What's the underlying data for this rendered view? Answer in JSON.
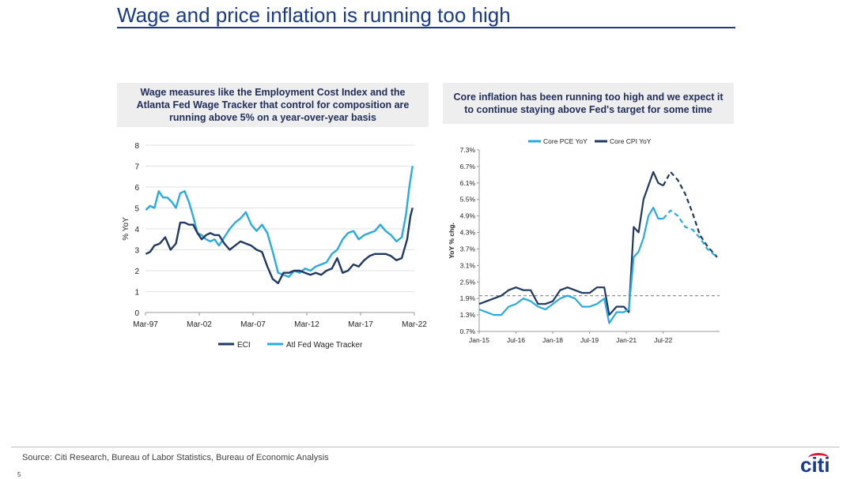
{
  "slide": {
    "title": "Wage and price inflation is running too high",
    "source": "Source: Citi Research, Bureau of Labor Statistics, Bureau of Economic Analysis",
    "page_number": "5",
    "logo_text": "citi",
    "colors": {
      "title": "#1a3a8c",
      "dark_series": "#1f3864",
      "light_series": "#29abe2",
      "logo_arc": "#e31837"
    }
  },
  "panels": {
    "left_heading": "Wage measures like the Employment Cost Index and the Atlanta Fed Wage Tracker that control for composition are running above 5% on a year-over-year basis",
    "right_heading": "Core inflation has been running too high and we expect it to continue staying above Fed's target for some time"
  },
  "chart_data": [
    {
      "type": "line",
      "ylabel": "% YoY",
      "ylim": [
        0,
        8
      ],
      "yticks": [
        0,
        1,
        2,
        3,
        4,
        5,
        6,
        7,
        8
      ],
      "xlim": [
        1997.17,
        2022.17
      ],
      "xtick_labels": [
        "Mar-97",
        "Mar-02",
        "Mar-07",
        "Mar-12",
        "Mar-17",
        "Mar-22"
      ],
      "xtick_positions": [
        1997.17,
        2002.17,
        2007.17,
        2012.17,
        2017.17,
        2022.17
      ],
      "legend_position": "bottom",
      "series": [
        {
          "name": "ECI",
          "color": "#1f3864",
          "x": [
            1997.2,
            1997.6,
            1998.0,
            1998.5,
            1999.0,
            1999.5,
            2000.0,
            2000.4,
            2000.8,
            2001.2,
            2001.6,
            2002.0,
            2002.4,
            2002.8,
            2003.2,
            2003.6,
            2004.0,
            2004.5,
            2005.0,
            2005.5,
            2006.0,
            2006.5,
            2007.0,
            2007.5,
            2008.0,
            2008.5,
            2009.0,
            2009.5,
            2010.0,
            2010.5,
            2011.0,
            2011.5,
            2012.0,
            2012.5,
            2013.0,
            2013.5,
            2014.0,
            2014.5,
            2015.0,
            2015.5,
            2016.0,
            2016.5,
            2017.0,
            2017.5,
            2018.0,
            2018.5,
            2019.0,
            2019.5,
            2020.0,
            2020.5,
            2021.0,
            2021.5,
            2021.8,
            2022.0
          ],
          "y": [
            2.8,
            2.9,
            3.2,
            3.3,
            3.6,
            3.0,
            3.3,
            4.3,
            4.3,
            4.2,
            4.2,
            3.8,
            3.5,
            3.7,
            3.8,
            3.7,
            3.7,
            3.3,
            3.0,
            3.2,
            3.4,
            3.3,
            3.2,
            3.0,
            2.9,
            2.2,
            1.6,
            1.4,
            1.9,
            1.9,
            2.0,
            2.0,
            1.9,
            1.8,
            1.9,
            1.8,
            2.0,
            2.1,
            2.6,
            1.9,
            2.0,
            2.3,
            2.2,
            2.5,
            2.7,
            2.8,
            2.8,
            2.8,
            2.7,
            2.5,
            2.6,
            3.5,
            4.6,
            5.0
          ]
        },
        {
          "name": "Atl Fed Wage Tracker",
          "color": "#29abe2",
          "x": [
            1997.2,
            1997.6,
            1998.0,
            1998.4,
            1998.8,
            1999.2,
            1999.6,
            2000.0,
            2000.4,
            2000.8,
            2001.2,
            2001.6,
            2002.0,
            2002.4,
            2002.8,
            2003.2,
            2003.6,
            2004.0,
            2004.5,
            2005.0,
            2005.5,
            2006.0,
            2006.5,
            2007.0,
            2007.5,
            2008.0,
            2008.5,
            2009.0,
            2009.5,
            2010.0,
            2010.5,
            2011.0,
            2011.5,
            2012.0,
            2012.5,
            2013.0,
            2013.5,
            2014.0,
            2014.5,
            2015.0,
            2015.5,
            2016.0,
            2016.5,
            2017.0,
            2017.5,
            2018.0,
            2018.5,
            2019.0,
            2019.5,
            2020.0,
            2020.5,
            2021.0,
            2021.4,
            2021.7,
            2022.0
          ],
          "y": [
            4.9,
            5.1,
            5.0,
            5.8,
            5.5,
            5.5,
            5.3,
            5.0,
            5.7,
            5.8,
            5.3,
            4.6,
            3.8,
            3.7,
            3.5,
            3.4,
            3.5,
            3.2,
            3.6,
            4.0,
            4.3,
            4.5,
            4.8,
            4.2,
            3.9,
            4.2,
            3.8,
            2.9,
            1.9,
            1.8,
            1.7,
            2.0,
            1.9,
            2.1,
            2.0,
            2.2,
            2.3,
            2.4,
            2.8,
            3.0,
            3.5,
            3.8,
            3.9,
            3.5,
            3.7,
            3.8,
            3.9,
            4.2,
            3.9,
            3.7,
            3.4,
            3.6,
            4.7,
            6.0,
            7.0
          ]
        }
      ]
    },
    {
      "type": "line",
      "ylabel": "YoY % chg.",
      "ylim": [
        0.7,
        7.3
      ],
      "ytick_labels": [
        "0.7%",
        "1.3%",
        "1.9%",
        "2.5%",
        "3.1%",
        "3.7%",
        "4.3%",
        "4.9%",
        "5.5%",
        "6.1%",
        "6.7%",
        "7.3%"
      ],
      "ytick_positions": [
        0.7,
        1.3,
        1.9,
        2.5,
        3.1,
        3.7,
        4.3,
        4.9,
        5.5,
        6.1,
        6.7,
        7.3
      ],
      "xlim": [
        2015.0,
        2024.8
      ],
      "xtick_labels": [
        "Jan-15",
        "Jul-16",
        "Jan-18",
        "Jul-19",
        "Jan-21",
        "Jul-22"
      ],
      "xtick_positions": [
        2015.0,
        2016.5,
        2018.0,
        2019.5,
        2021.0,
        2022.5
      ],
      "reference_line": 2.0,
      "legend_position": "top",
      "series": [
        {
          "name": "Core PCE YoY",
          "color": "#29abe2",
          "x": [
            2015.0,
            2015.3,
            2015.6,
            2015.9,
            2016.2,
            2016.5,
            2016.8,
            2017.1,
            2017.4,
            2017.7,
            2018.0,
            2018.3,
            2018.6,
            2018.9,
            2019.2,
            2019.5,
            2019.8,
            2020.1,
            2020.3,
            2020.6,
            2020.9,
            2021.1,
            2021.3,
            2021.5,
            2021.7,
            2021.9,
            2022.1,
            2022.3,
            2022.5
          ],
          "y": [
            1.5,
            1.4,
            1.3,
            1.3,
            1.6,
            1.7,
            1.9,
            1.8,
            1.6,
            1.5,
            1.7,
            1.9,
            2.0,
            1.9,
            1.6,
            1.6,
            1.7,
            1.9,
            1.0,
            1.4,
            1.4,
            1.5,
            3.4,
            3.6,
            4.1,
            4.9,
            5.2,
            4.8,
            4.8
          ],
          "forecast_x": [
            2022.5,
            2022.8,
            2023.1,
            2023.4,
            2023.7,
            2024.0,
            2024.3,
            2024.7
          ],
          "forecast_y": [
            4.8,
            5.1,
            4.9,
            4.5,
            4.4,
            4.1,
            3.7,
            3.4
          ]
        },
        {
          "name": "Core CPI YoY",
          "color": "#1f3864",
          "x": [
            2015.0,
            2015.3,
            2015.6,
            2015.9,
            2016.2,
            2016.5,
            2016.8,
            2017.1,
            2017.4,
            2017.7,
            2018.0,
            2018.3,
            2018.6,
            2018.9,
            2019.2,
            2019.5,
            2019.8,
            2020.1,
            2020.3,
            2020.6,
            2020.9,
            2021.1,
            2021.3,
            2021.5,
            2021.7,
            2021.9,
            2022.1,
            2022.3,
            2022.5
          ],
          "y": [
            1.7,
            1.8,
            1.9,
            2.0,
            2.2,
            2.3,
            2.2,
            2.2,
            1.7,
            1.7,
            1.8,
            2.2,
            2.3,
            2.2,
            2.1,
            2.1,
            2.3,
            2.3,
            1.3,
            1.6,
            1.6,
            1.4,
            4.5,
            4.3,
            5.5,
            6.0,
            6.5,
            6.1,
            6.0
          ],
          "forecast_x": [
            2022.5,
            2022.8,
            2023.1,
            2023.4,
            2023.7,
            2024.0,
            2024.3,
            2024.7
          ],
          "forecast_y": [
            6.0,
            6.5,
            6.2,
            5.7,
            5.0,
            4.2,
            3.8,
            3.4
          ]
        }
      ]
    }
  ]
}
